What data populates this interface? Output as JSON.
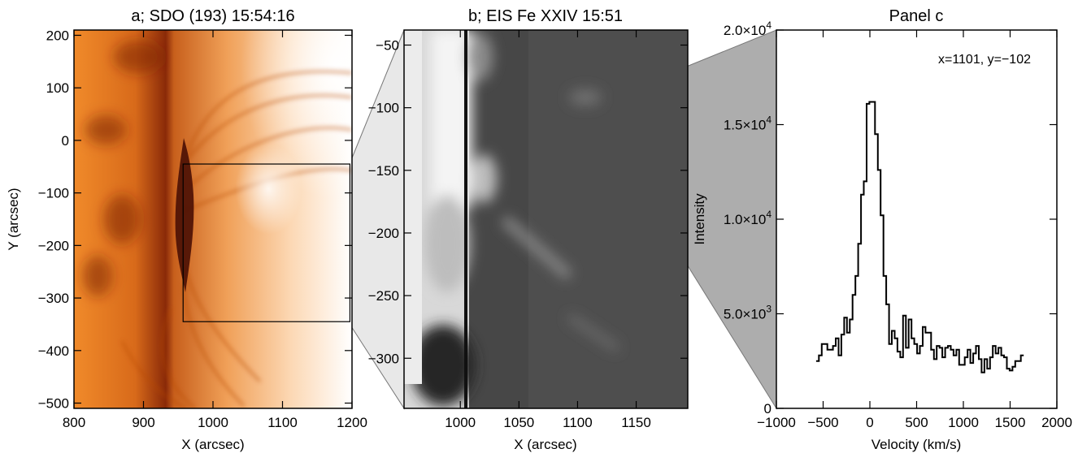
{
  "chart_data": [
    {
      "type": "image",
      "title": "a; SDO (193) 15:54:16",
      "xlabel": "X (arcsec)",
      "ylabel": "Y (arcsec)",
      "xlim": [
        800,
        1200
      ],
      "ylim": [
        -510,
        210
      ],
      "xticks": [
        800,
        900,
        1000,
        1100,
        1200
      ],
      "xtick_labels": [
        "800",
        "900",
        "1000",
        "1100",
        "1200"
      ],
      "yticks": [
        200,
        100,
        0,
        -100,
        -200,
        -300,
        -400,
        -500
      ],
      "ytick_labels": [
        "200",
        "100",
        "0",
        "−100",
        "−200",
        "−300",
        "−400",
        "−500"
      ],
      "colormap": [
        "#7a1f06",
        "#c85a12",
        "#ee9838",
        "#fbd2a8",
        "#ffffff"
      ],
      "box_region": {
        "x": [
          957,
          1197
        ],
        "y": [
          -345,
          -45
        ]
      }
    },
    {
      "type": "image",
      "title": "b; EIS Fe XXIV 15:51",
      "xlabel": "X (arcsec)",
      "xlim": [
        952,
        1194
      ],
      "ylim": [
        -340,
        -38
      ],
      "xticks": [
        1000,
        1050,
        1100,
        1150
      ],
      "xtick_labels": [
        "1000",
        "1050",
        "1100",
        "1150"
      ],
      "yticks": [
        -50,
        -100,
        -150,
        -200,
        -250,
        -300
      ],
      "ytick_labels": [
        "−50",
        "−100",
        "−150",
        "−200",
        "−250",
        "−300"
      ],
      "colormap": [
        "#1e1e1e",
        "#474747",
        "#8c8c8c",
        "#ffffff"
      ],
      "marked_pixel": {
        "x": 1101,
        "y": -102
      }
    },
    {
      "type": "line",
      "step": true,
      "title": "Panel c",
      "annotation": "x=1101, y=−102",
      "xlabel": "Velocity (km/s)",
      "ylabel": "Intensity",
      "xlim": [
        -1000,
        2000
      ],
      "ylim": [
        0,
        20000
      ],
      "xticks": [
        -1000,
        -500,
        0,
        500,
        1000,
        1500,
        2000
      ],
      "xtick_labels": [
        "−1000",
        "−500",
        "0",
        "500",
        "1000",
        "1500",
        "2000"
      ],
      "yticks": [
        0,
        5000,
        10000,
        15000,
        20000
      ],
      "ytick_labels": [
        {
          "m": "0",
          "e": ""
        },
        {
          "m": "5.0×10",
          "e": "3"
        },
        {
          "m": "1.0×10",
          "e": "4"
        },
        {
          "m": "1.5×10",
          "e": "4"
        },
        {
          "m": "2.0×10",
          "e": "4"
        }
      ],
      "series": [
        {
          "x": [
            -560,
            -530,
            -500,
            -470,
            -440,
            -410,
            -380,
            -350,
            -320,
            -290,
            -260,
            -230,
            -200,
            -170,
            -140,
            -110,
            -80,
            -50,
            -20,
            10,
            40,
            70,
            100,
            130,
            160,
            190,
            220,
            250,
            280,
            310,
            340,
            370,
            400,
            430,
            460,
            490,
            520,
            550,
            580,
            610,
            640,
            670,
            700,
            730,
            760,
            790,
            820,
            850,
            880,
            910,
            940,
            970,
            1000,
            1030,
            1060,
            1090,
            1120,
            1150,
            1180,
            1210,
            1240,
            1270,
            1300,
            1330,
            1360,
            1390,
            1420,
            1450,
            1480,
            1510,
            1540,
            1570,
            1600,
            1630
          ],
          "values": [
            2500,
            2800,
            3400,
            3400,
            3100,
            3100,
            3300,
            3700,
            2800,
            3900,
            4800,
            4000,
            4700,
            6000,
            7000,
            8700,
            11300,
            12000,
            16100,
            16200,
            16200,
            14500,
            12600,
            10200,
            7000,
            5500,
            3400,
            4100,
            3700,
            3000,
            2700,
            4900,
            3200,
            4700,
            3700,
            3400,
            2900,
            3300,
            4300,
            4000,
            4000,
            3100,
            2600,
            3300,
            3200,
            2700,
            3200,
            3300,
            3100,
            2800,
            3100,
            2300,
            2300,
            2700,
            3100,
            2400,
            2900,
            3300,
            2600,
            1900,
            2600,
            2100,
            2700,
            3300,
            2900,
            3200,
            2800,
            2700,
            2100,
            2000,
            2200,
            2500,
            2500,
            2800
          ]
        }
      ]
    }
  ]
}
